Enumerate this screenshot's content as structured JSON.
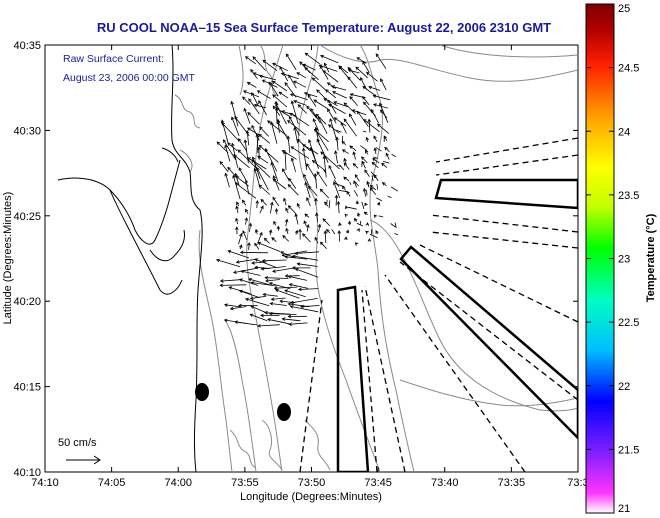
{
  "title": "RU COOL  NOAA–15  Sea Surface Temperature:  August 22, 2006 2310 GMT",
  "annotation": {
    "line1": "Raw Surface Current:",
    "line2": "August 23, 2006 00:00 GMT",
    "color": "#1a1aa0"
  },
  "axes": {
    "xlabel": "Longitude (Degrees:Minutes)",
    "ylabel": "Latitude (Degrees:Minutes)",
    "x_ticks": [
      "74:10",
      "74:05",
      "74:00",
      "73:55",
      "73:50",
      "73:45",
      "73:40",
      "73:35",
      "73:3"
    ],
    "y_ticks": [
      "40:35",
      "40:30",
      "40:25",
      "40:20",
      "40:15",
      "40:10"
    ],
    "lon_range_minutes_west": [
      10,
      30
    ],
    "lat_range_minutes": [
      10,
      35
    ]
  },
  "scale_label": "50 cm/s",
  "colorbar": {
    "label": "Temperature (°C)",
    "ticks": [
      "25",
      "24.5",
      "24",
      "23.5",
      "23",
      "22.5",
      "22",
      "21.5",
      "21"
    ],
    "range": [
      21,
      25
    ],
    "colormap": [
      "#ffffff",
      "#ff33ff",
      "#7f1fff",
      "#0000ff",
      "#00bfff",
      "#00ffbf",
      "#00ff00",
      "#bfff00",
      "#ffff00",
      "#ff9f00",
      "#ff2000",
      "#b00000",
      "#7f0000"
    ]
  },
  "colors": {
    "coast": "#000000",
    "bathymetry": "#888888",
    "vectors": "#000000",
    "title": "#1a1aa0"
  }
}
